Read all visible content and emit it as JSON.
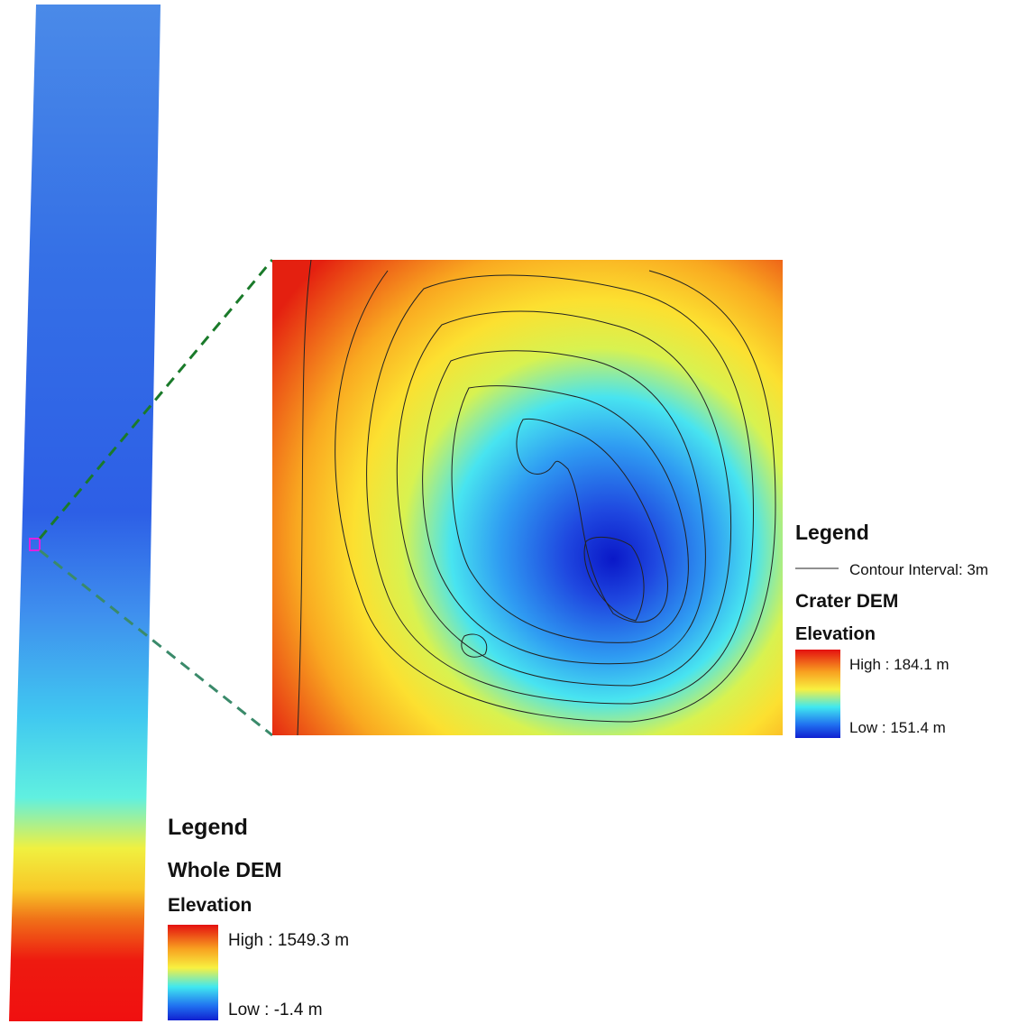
{
  "inset_legend": {
    "title": "Legend",
    "contour_label": "Contour Interval: 3m",
    "layer": "Crater DEM",
    "field": "Elevation",
    "high": "High : 184.1 m",
    "low": "Low : 151.4 m"
  },
  "main_legend": {
    "title": "Legend",
    "layer": "Whole DEM",
    "field": "Elevation",
    "high": "High : 1549.3 m",
    "low": "Low : -1.4 m"
  }
}
